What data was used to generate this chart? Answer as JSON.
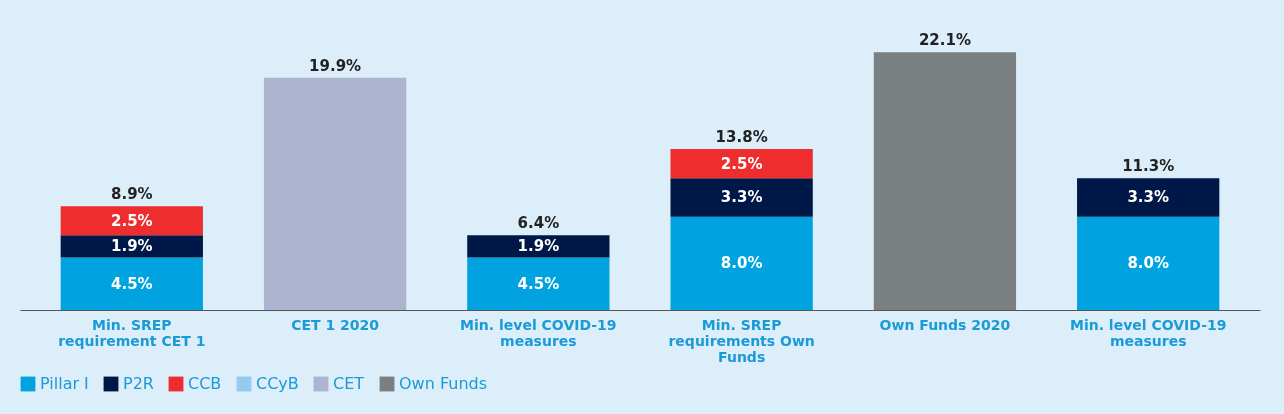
{
  "chart_data": {
    "type": "bar",
    "stacked": true,
    "categories": [
      "Min. SREP requirement CET 1",
      "CET 1 2020",
      "Min. level COVID-19 measures",
      "Min. SREP requirements Own Funds",
      "Own Funds 2020",
      "Min. level COVID-19 measures"
    ],
    "series": [
      {
        "name": "Pillar I",
        "color": "#00a3e0",
        "values": [
          4.5,
          null,
          4.5,
          8.0,
          null,
          8.0
        ],
        "value_labels": [
          "4.5%",
          null,
          "4.5%",
          "8.0%",
          null,
          "8.0%"
        ]
      },
      {
        "name": "P2R",
        "color": "#001847",
        "values": [
          1.9,
          null,
          1.9,
          3.3,
          null,
          3.3
        ],
        "value_labels": [
          "1.9%",
          null,
          "1.9%",
          "3.3%",
          null,
          "3.3%"
        ]
      },
      {
        "name": "CCB",
        "color": "#ee2e2e",
        "values": [
          2.5,
          null,
          null,
          2.5,
          null,
          null
        ],
        "value_labels": [
          "2.5%",
          null,
          null,
          "2.5%",
          null,
          null
        ]
      },
      {
        "name": "CCyB",
        "color": "#92cbee",
        "values": [
          null,
          null,
          null,
          null,
          null,
          null
        ]
      },
      {
        "name": "CET",
        "color": "#adb4cf",
        "values": [
          null,
          19.9,
          null,
          null,
          null,
          null
        ]
      },
      {
        "name": "Own Funds",
        "color": "#7a7f82",
        "values": [
          null,
          null,
          null,
          null,
          22.1,
          null
        ]
      }
    ],
    "totals": [
      "8.9%",
      "19.9%",
      "6.4%",
      "13.8%",
      "22.1%",
      "11.3%"
    ],
    "legend": "bottom",
    "grid": false
  }
}
